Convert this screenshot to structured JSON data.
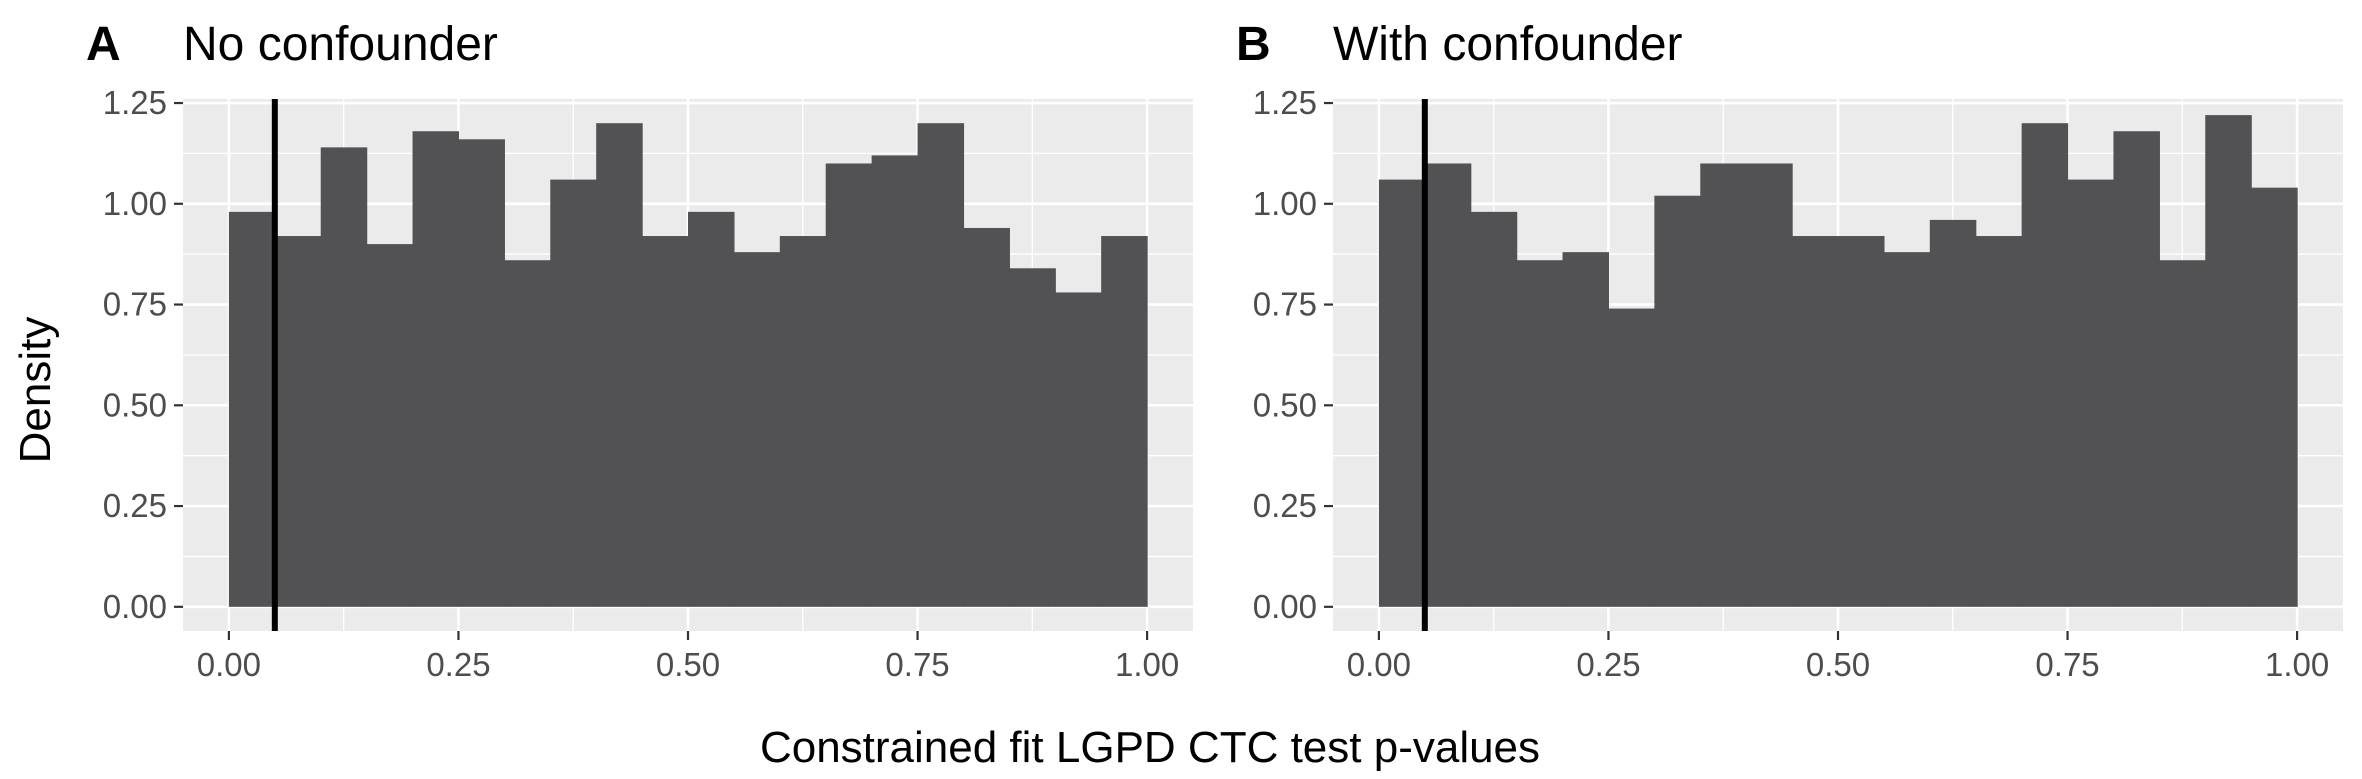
{
  "chart_data": [
    {
      "type": "bar",
      "tag": "A",
      "title": "No confounder",
      "bin_edges": [
        0,
        0.05,
        0.1,
        0.15,
        0.2,
        0.25,
        0.3,
        0.35,
        0.4,
        0.45,
        0.5,
        0.55,
        0.6,
        0.65,
        0.7,
        0.75,
        0.8,
        0.85,
        0.9,
        0.95,
        1.0
      ],
      "values": [
        0.98,
        0.92,
        1.14,
        0.9,
        1.18,
        1.16,
        0.86,
        1.06,
        1.2,
        0.92,
        0.98,
        0.88,
        0.92,
        1.1,
        1.12,
        1.2,
        0.94,
        0.84,
        0.78,
        0.92
      ],
      "xlim": [
        -0.05,
        1.05
      ],
      "ylim": [
        -0.06,
        1.26
      ],
      "x_ticks": [
        "0.00",
        "0.25",
        "0.50",
        "0.75",
        "1.00"
      ],
      "y_ticks": [
        "0.00",
        "0.25",
        "0.50",
        "0.75",
        "1.00",
        "1.25"
      ],
      "vline": 0.05
    },
    {
      "type": "bar",
      "tag": "B",
      "title": "With confounder",
      "bin_edges": [
        0,
        0.05,
        0.1,
        0.15,
        0.2,
        0.25,
        0.3,
        0.35,
        0.4,
        0.45,
        0.5,
        0.55,
        0.6,
        0.65,
        0.7,
        0.75,
        0.8,
        0.85,
        0.9,
        0.95,
        1.0
      ],
      "values": [
        1.06,
        1.1,
        0.98,
        0.86,
        0.88,
        0.74,
        1.02,
        1.1,
        1.1,
        0.92,
        0.92,
        0.88,
        0.96,
        0.92,
        1.2,
        1.06,
        1.18,
        0.86,
        1.22,
        1.04
      ],
      "xlim": [
        -0.05,
        1.05
      ],
      "ylim": [
        -0.06,
        1.26
      ],
      "x_ticks": [
        "0.00",
        "0.25",
        "0.50",
        "0.75",
        "1.00"
      ],
      "y_ticks": [
        "0.00",
        "0.25",
        "0.50",
        "0.75",
        "1.00",
        "1.25"
      ],
      "vline": 0.05
    }
  ],
  "ylabel": "Density",
  "xlabel": "Constrained fit LGPD CTC test p-values",
  "colors": {
    "bar_fill": "#525153",
    "panel_bg": "#ebebeb",
    "grid": "#ffffff",
    "vline": "#000000"
  }
}
